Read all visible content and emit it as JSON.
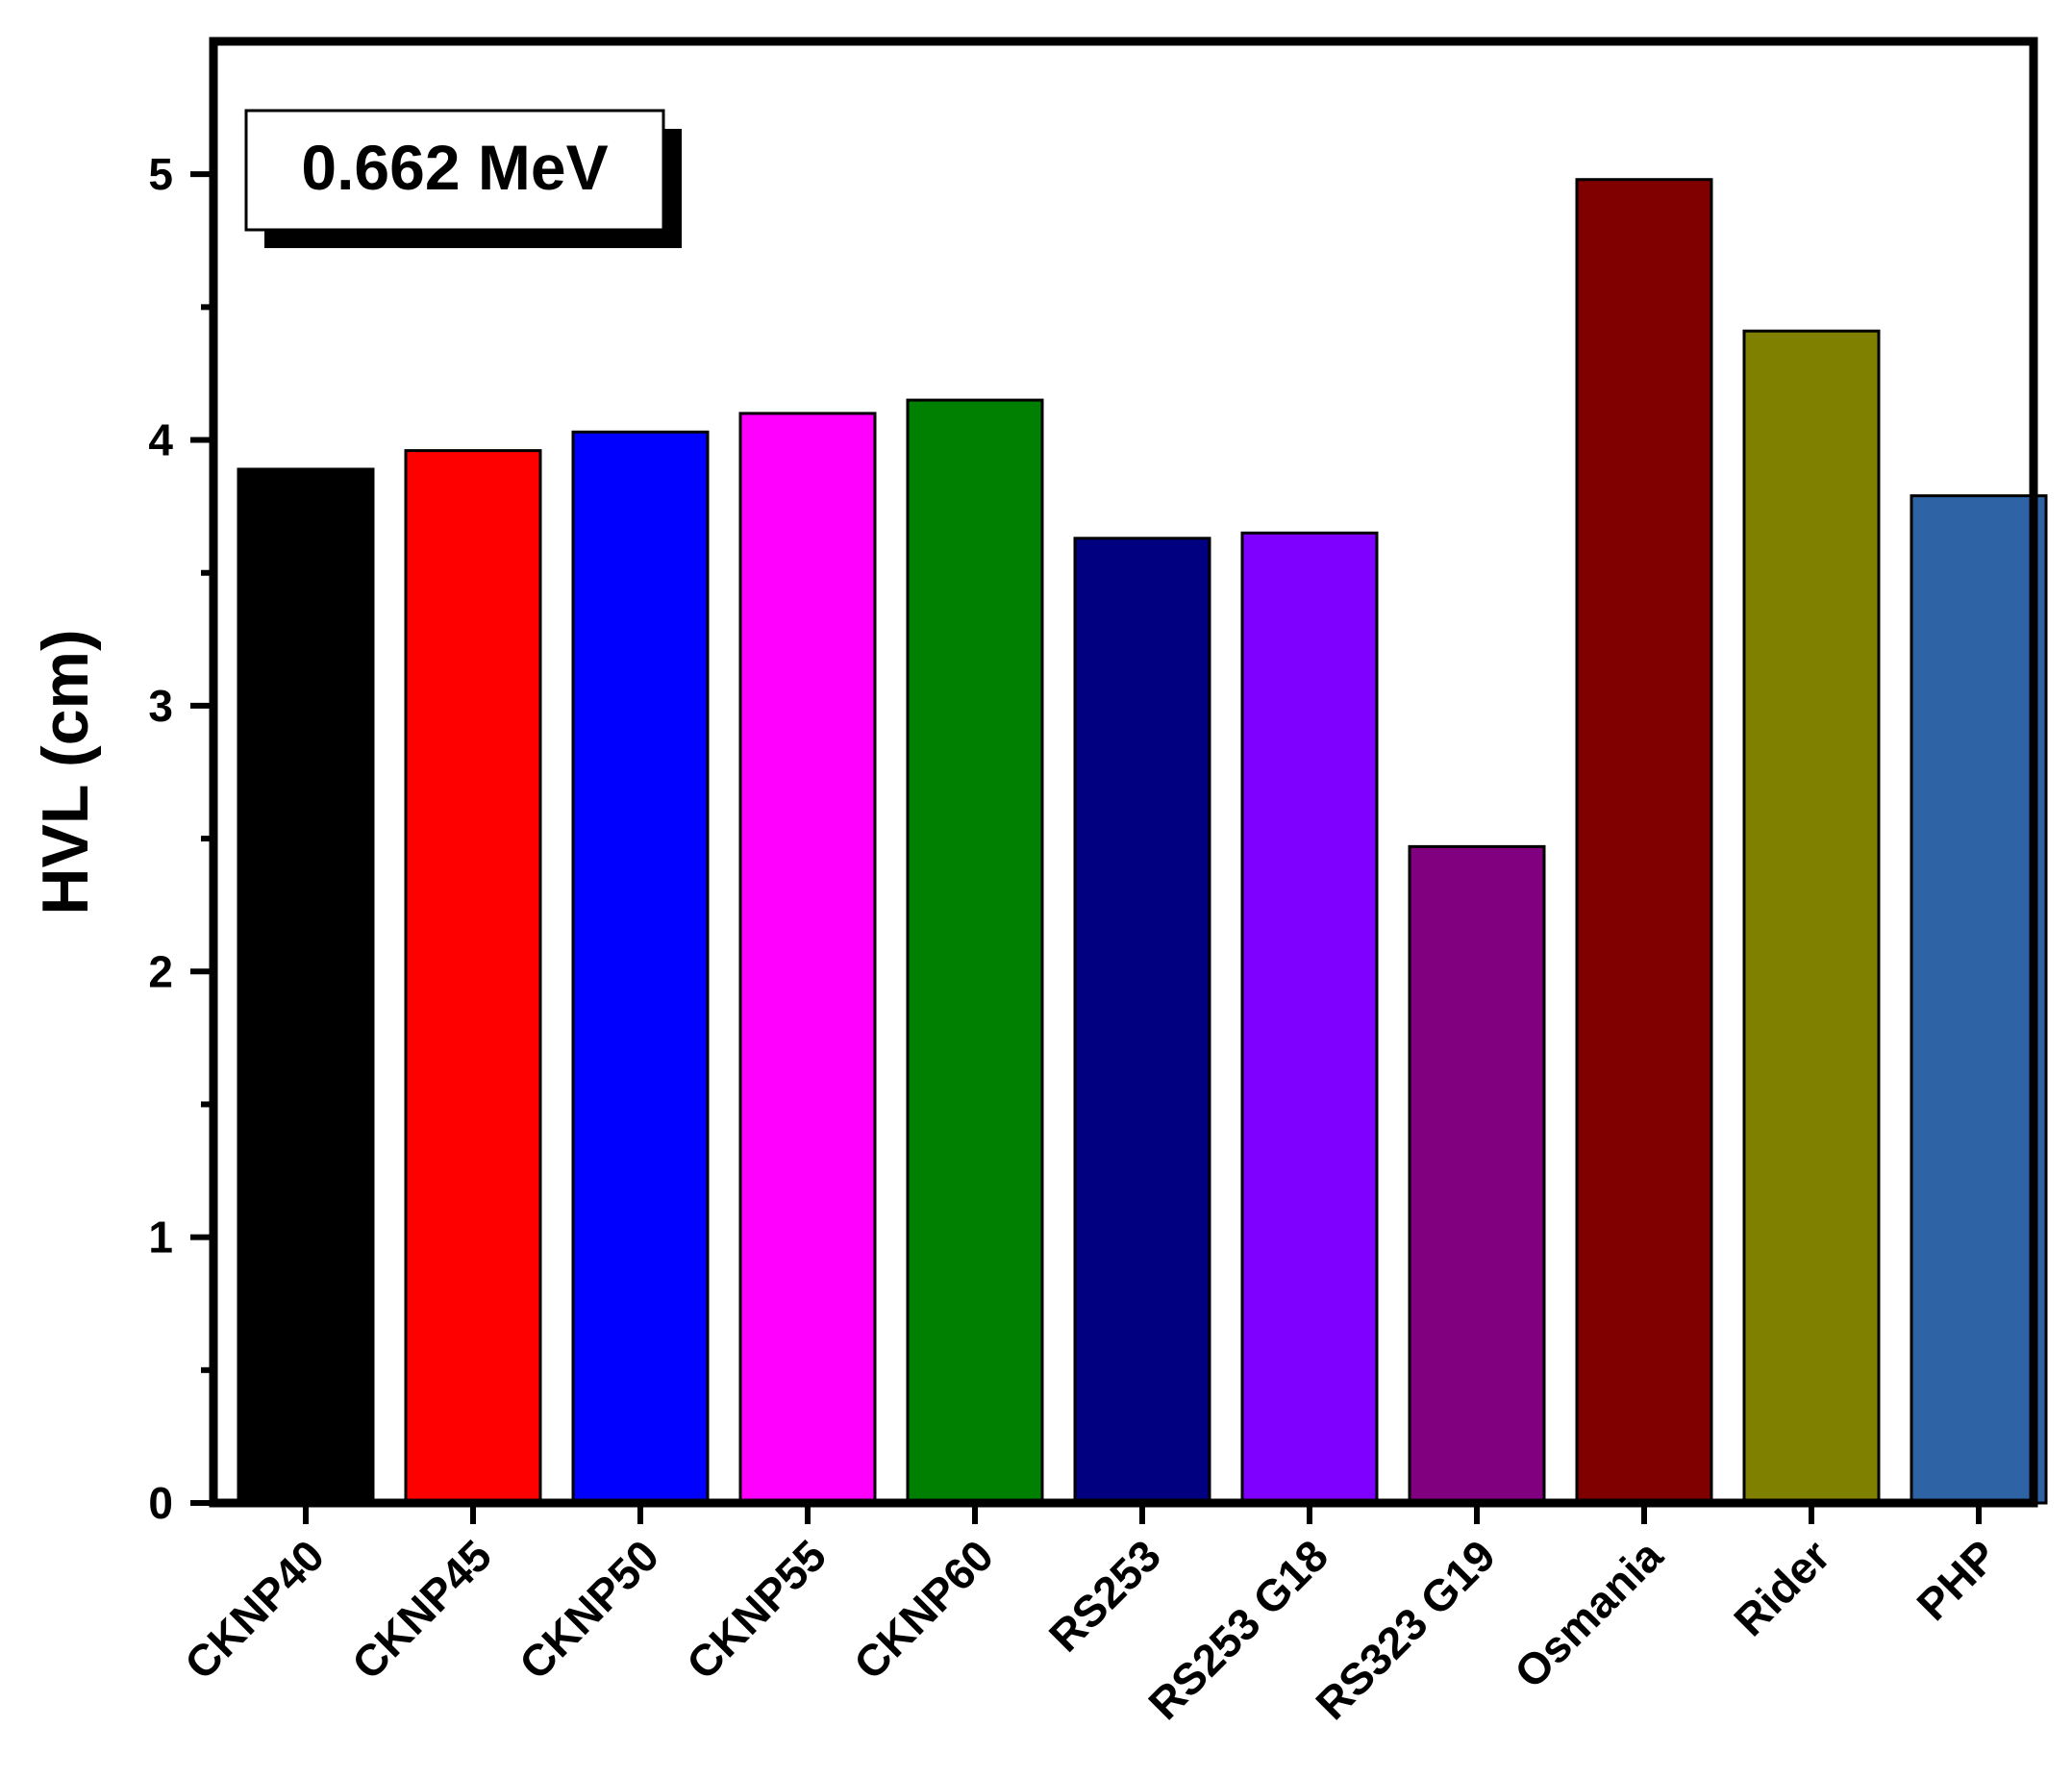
{
  "chart_data": {
    "type": "bar",
    "annotation": "0.662 MeV",
    "ylabel": "HVL (cm)",
    "xlabel": "",
    "ylim": [
      0,
      5.5
    ],
    "yticks": [
      "0",
      "1",
      "2",
      "3",
      "4",
      "5"
    ],
    "categories": [
      "CKNP40",
      "CKNP45",
      "CKNP50",
      "CKNP55",
      "CKNP60",
      "RS253",
      "RS253 G18",
      "RS323 G19",
      "Osmania",
      "Rider",
      "PHP"
    ],
    "values": [
      3.89,
      3.96,
      4.03,
      4.1,
      4.15,
      3.63,
      3.65,
      2.47,
      4.98,
      4.41,
      3.79
    ],
    "colors": [
      "#000000",
      "#ff0000",
      "#0000ff",
      "#ff00ff",
      "#008000",
      "#000080",
      "#8000ff",
      "#800080",
      "#800000",
      "#808000",
      "#2e64a6"
    ],
    "grid": false,
    "legend": "none"
  }
}
